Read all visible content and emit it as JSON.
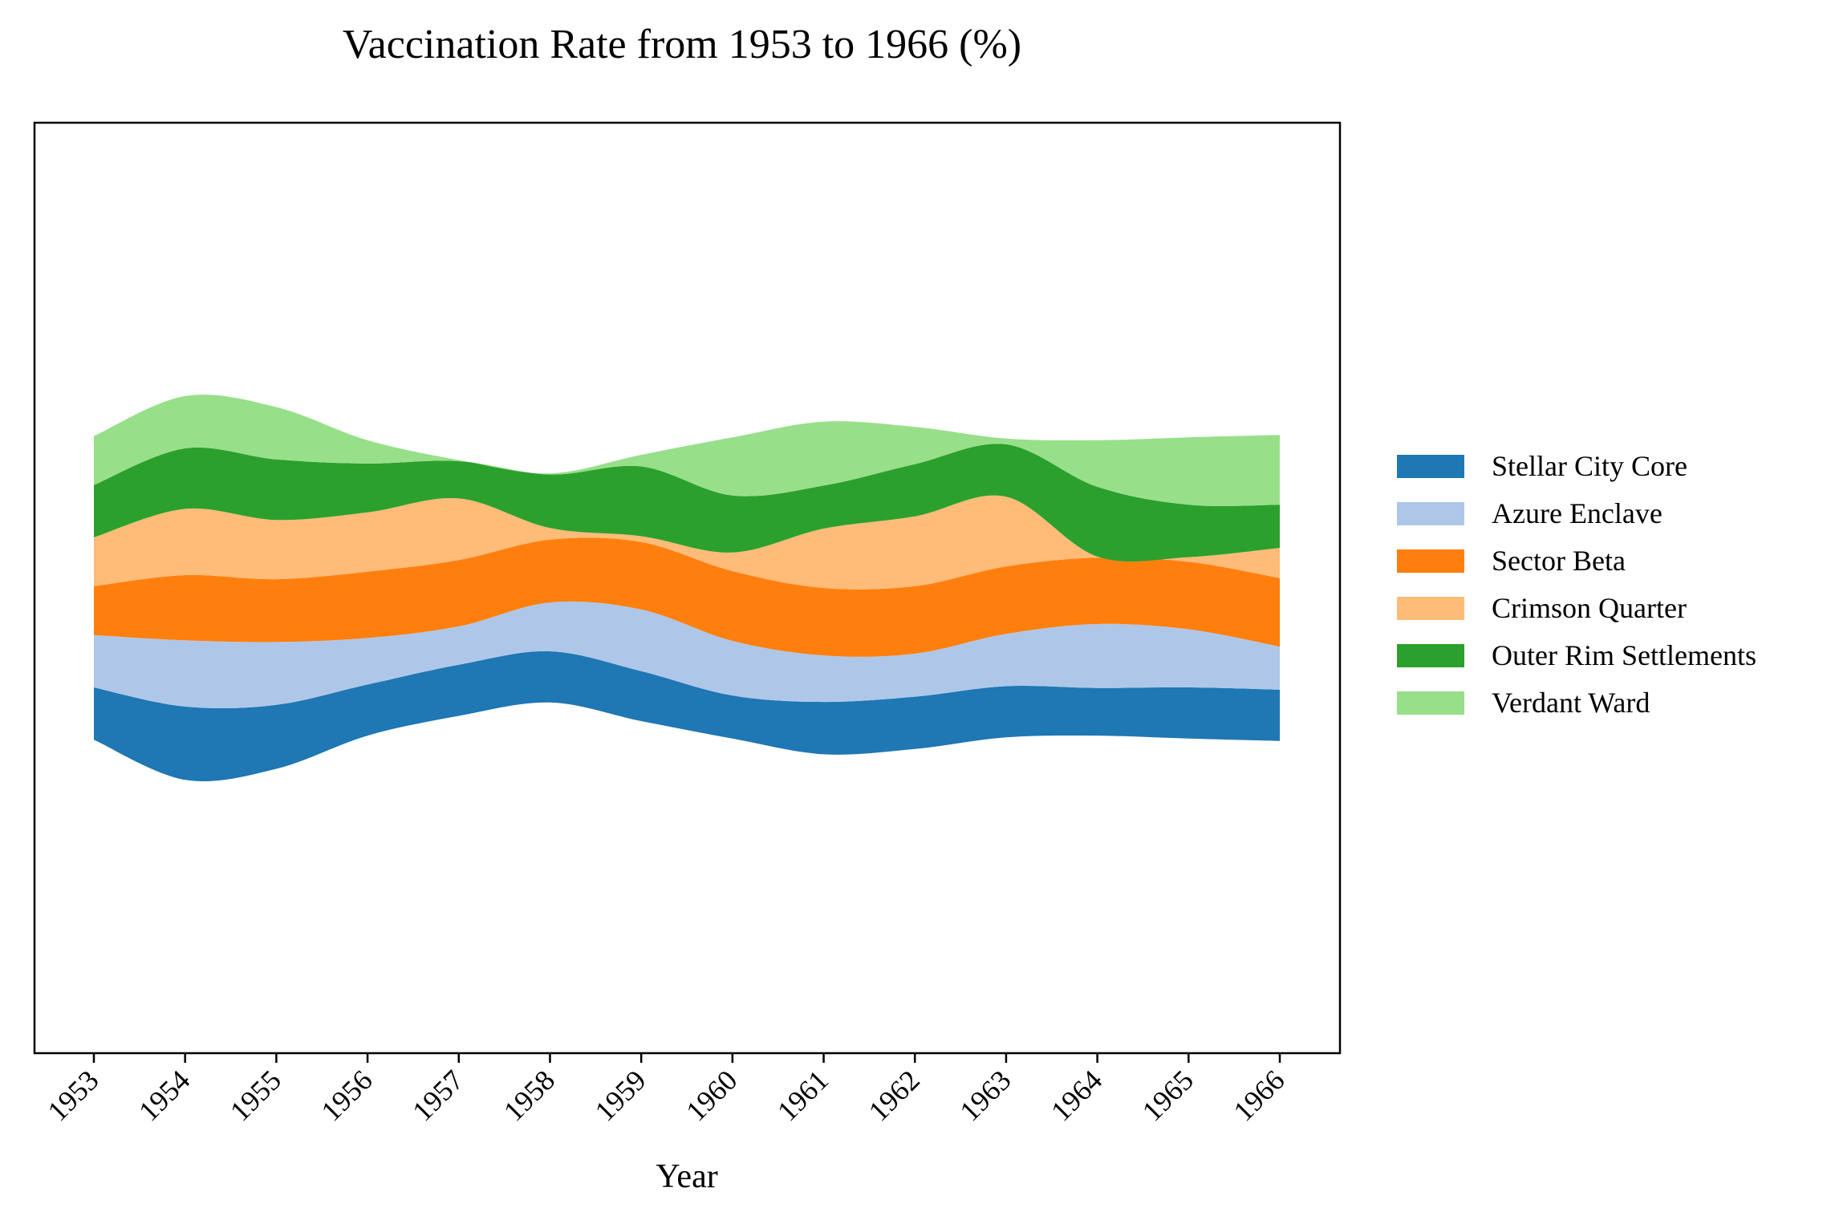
{
  "chart_data": {
    "type": "area",
    "subtype": "streamgraph",
    "title": "Vaccination Rate from 1953 to 1966 (%)",
    "xlabel": "Year",
    "ylabel": "",
    "x": [
      "1953",
      "1954",
      "1955",
      "1956",
      "1957",
      "1958",
      "1959",
      "1960",
      "1961",
      "1962",
      "1963",
      "1964",
      "1965",
      "1966"
    ],
    "y_axis_visible": false,
    "grid": false,
    "legend_position": "right",
    "series": [
      {
        "name": "Stellar City Core",
        "color": "#1f77b4",
        "values": [
          45,
          63,
          55,
          44,
          44,
          44,
          43,
          37,
          45,
          45,
          44,
          41,
          44,
          44
        ]
      },
      {
        "name": "Azure Enclave",
        "color": "#aec7e8",
        "values": [
          45,
          57,
          54,
          40,
          33,
          42,
          53,
          47,
          40,
          37,
          45,
          55,
          50,
          37
        ]
      },
      {
        "name": "Sector Beta",
        "color": "#ff7f0e",
        "values": [
          42,
          56,
          54,
          57,
          57,
          54,
          58,
          60,
          58,
          58,
          58,
          57,
          58,
          59
        ]
      },
      {
        "name": "Crimson Quarter",
        "color": "#ffbb78",
        "values": [
          42,
          57,
          51,
          51,
          53,
          10,
          5,
          16,
          51,
          60,
          60,
          1,
          4,
          26
        ]
      },
      {
        "name": "Outer Rim Settlements",
        "color": "#2ca02c",
        "values": [
          45,
          52,
          52,
          42,
          32,
          46,
          60,
          49,
          37,
          45,
          45,
          60,
          45,
          37
        ]
      },
      {
        "name": "Verdant Ward",
        "color": "#98df8a",
        "values": [
          42,
          45,
          45,
          20,
          1,
          1,
          10,
          50,
          55,
          32,
          5,
          40,
          58,
          60
        ]
      }
    ]
  }
}
